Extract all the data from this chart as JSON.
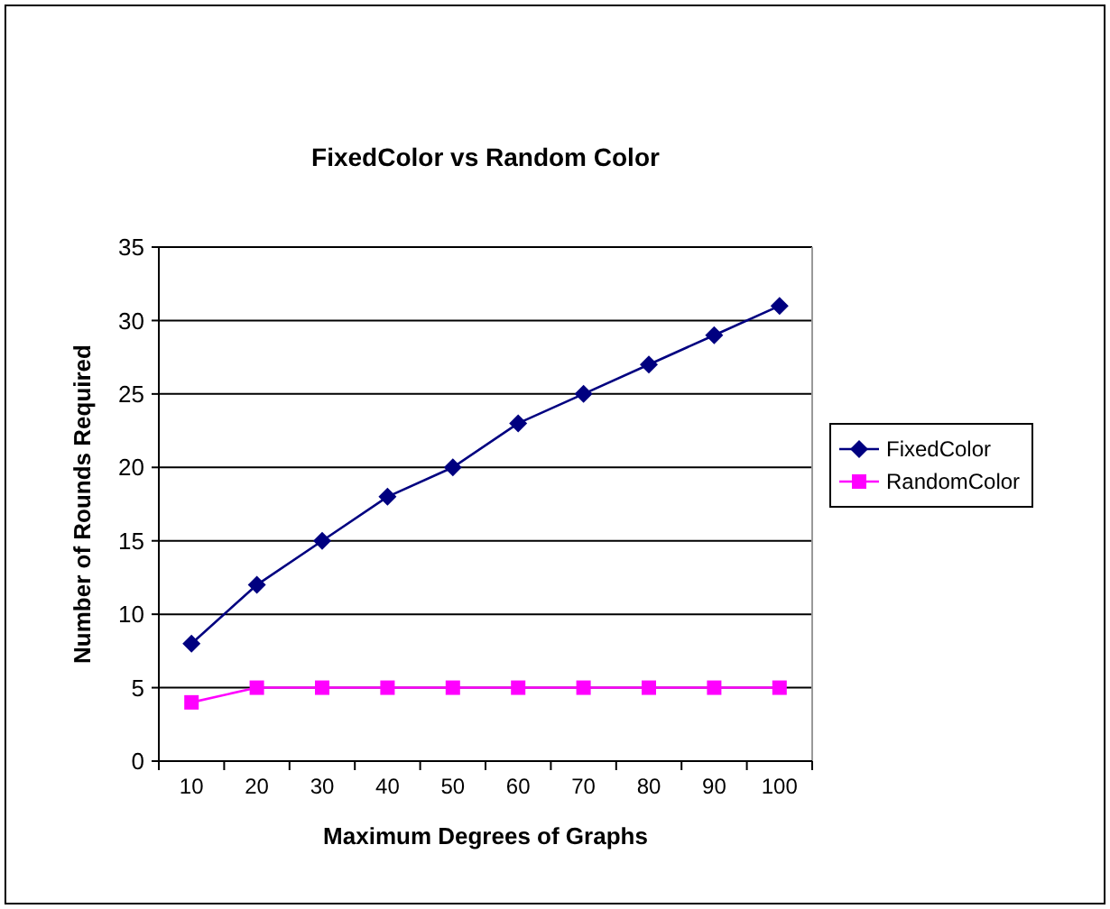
{
  "chart_data": {
    "type": "line",
    "title": "FixedColor vs Random Color",
    "xlabel": "Maximum Degrees of Graphs",
    "ylabel": "Number of Rounds Required",
    "categories": [
      "10",
      "20",
      "30",
      "40",
      "50",
      "60",
      "70",
      "80",
      "90",
      "100"
    ],
    "series": [
      {
        "name": "FixedColor",
        "color": "#000080",
        "marker": "diamond",
        "values": [
          8,
          12,
          15,
          18,
          20,
          23,
          25,
          27,
          29,
          31
        ]
      },
      {
        "name": "RandomColor",
        "color": "#ff00ff",
        "marker": "square",
        "values": [
          4,
          5,
          5,
          5,
          5,
          5,
          5,
          5,
          5,
          5
        ]
      }
    ],
    "ylim": [
      0,
      35
    ],
    "yticks": [
      0,
      5,
      10,
      15,
      20,
      25,
      30,
      35
    ],
    "grid": "y",
    "legend": "right"
  }
}
